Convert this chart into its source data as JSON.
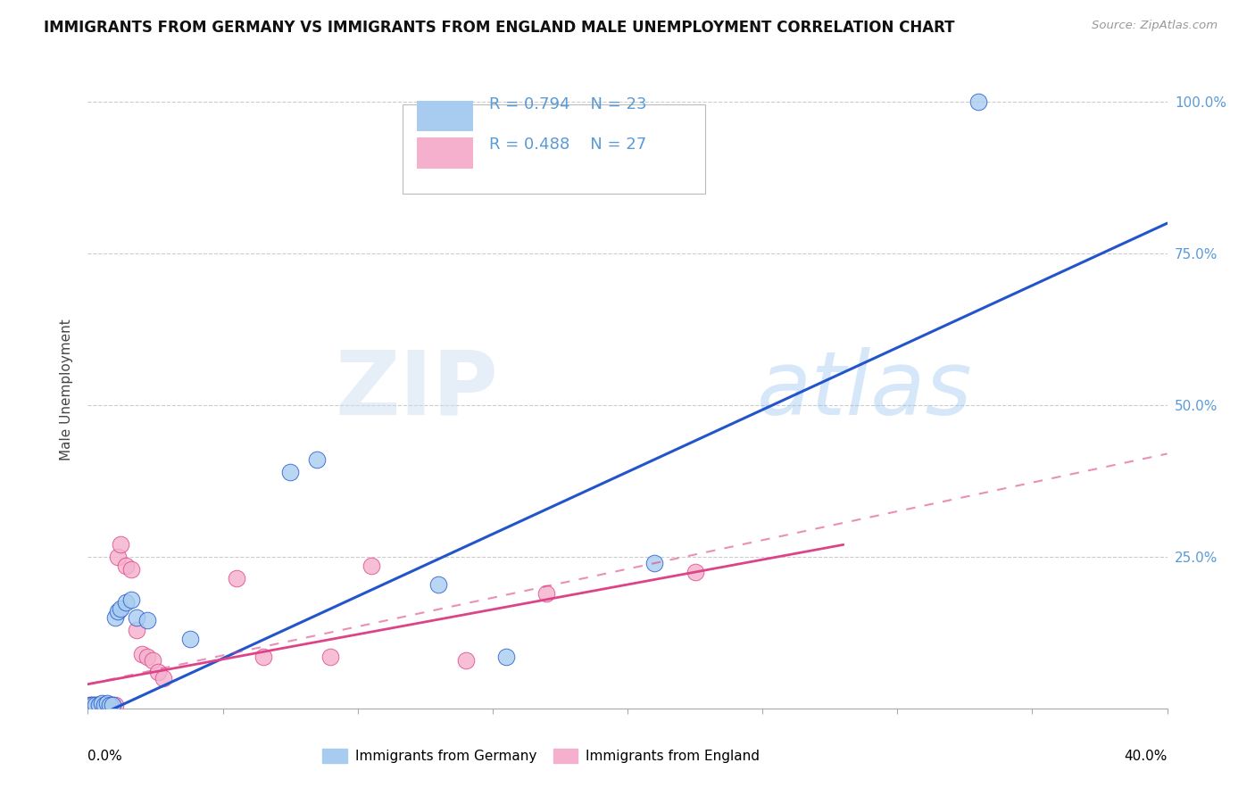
{
  "title": "IMMIGRANTS FROM GERMANY VS IMMIGRANTS FROM ENGLAND MALE UNEMPLOYMENT CORRELATION CHART",
  "source": "Source: ZipAtlas.com",
  "ylabel": "Male Unemployment",
  "legend_label1": "Immigrants from Germany",
  "legend_label2": "Immigrants from England",
  "R1": "0.794",
  "N1": "23",
  "R2": "0.488",
  "N2": "27",
  "color_germany": "#A8CCF0",
  "color_england": "#F4B0CC",
  "color_germany_line": "#2255CC",
  "color_england_line": "#DD4488",
  "watermark_zip": "ZIP",
  "watermark_atlas": "atlas",
  "xmin": 0.0,
  "xmax": 0.4,
  "ymin": 0.0,
  "ymax": 1.05,
  "yticks": [
    0.0,
    0.25,
    0.5,
    0.75,
    1.0
  ],
  "ytick_labels": [
    "",
    "25.0%",
    "50.0%",
    "75.0%",
    "100.0%"
  ],
  "xtick_label_left": "0.0%",
  "xtick_label_right": "40.0%",
  "germany_x": [
    0.001,
    0.002,
    0.003,
    0.004,
    0.005,
    0.006,
    0.007,
    0.008,
    0.009,
    0.01,
    0.011,
    0.012,
    0.014,
    0.016,
    0.018,
    0.022,
    0.038,
    0.075,
    0.085,
    0.13,
    0.155,
    0.21,
    0.33
  ],
  "germany_y": [
    0.005,
    0.005,
    0.005,
    0.005,
    0.008,
    0.005,
    0.008,
    0.005,
    0.005,
    0.15,
    0.16,
    0.165,
    0.175,
    0.18,
    0.15,
    0.145,
    0.115,
    0.39,
    0.41,
    0.205,
    0.085,
    0.24,
    1.0
  ],
  "england_x": [
    0.001,
    0.002,
    0.003,
    0.004,
    0.005,
    0.006,
    0.007,
    0.008,
    0.009,
    0.01,
    0.011,
    0.012,
    0.014,
    0.016,
    0.018,
    0.02,
    0.022,
    0.024,
    0.026,
    0.028,
    0.055,
    0.065,
    0.09,
    0.105,
    0.14,
    0.17,
    0.225
  ],
  "england_y": [
    0.005,
    0.005,
    0.005,
    0.005,
    0.005,
    0.005,
    0.005,
    0.005,
    0.005,
    0.005,
    0.25,
    0.27,
    0.235,
    0.23,
    0.13,
    0.09,
    0.085,
    0.08,
    0.06,
    0.05,
    0.215,
    0.085,
    0.085,
    0.235,
    0.08,
    0.19,
    0.225
  ],
  "line_germany_x0": 0.0,
  "line_germany_y0": -0.02,
  "line_germany_x1": 0.4,
  "line_germany_y1": 0.8,
  "line_england_solid_x0": 0.0,
  "line_england_solid_y0": 0.04,
  "line_england_solid_x1": 0.28,
  "line_england_solid_y1": 0.27,
  "line_england_dash_x0": 0.0,
  "line_england_dash_y0": 0.04,
  "line_england_dash_x1": 0.4,
  "line_england_dash_y1": 0.42
}
